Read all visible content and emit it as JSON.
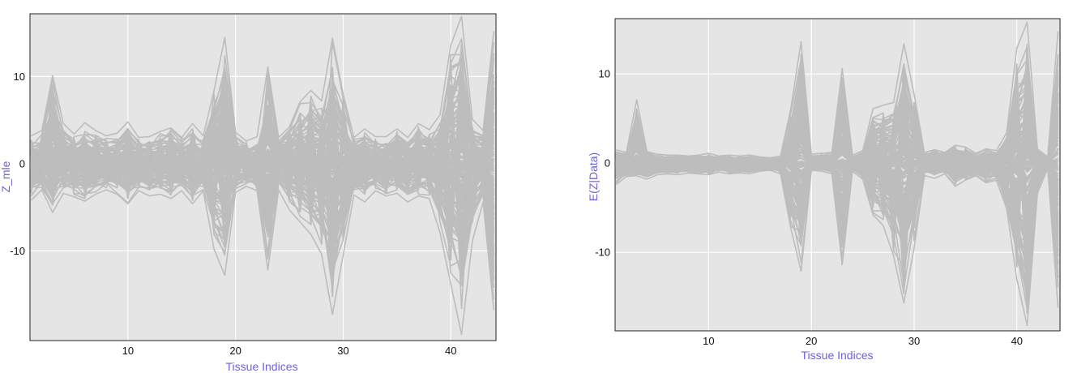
{
  "chart_data": [
    {
      "type": "line",
      "title": "",
      "xlabel": "Tissue Indices",
      "ylabel": "Z_mle",
      "xlim": [
        0.9,
        44.2
      ],
      "ylim": [
        -20.3,
        17.2
      ],
      "x_ticks": [
        10,
        20,
        30,
        40
      ],
      "y_ticks": [
        10,
        0,
        -10
      ],
      "grid": true,
      "legend": "none",
      "line_color": "#bdbdbd",
      "plot_background": "#e5e5e5",
      "grid_color": "#ffffff",
      "n_tissues": 44,
      "series_description_note": "",
      "envelope": {
        "x": [
          1,
          2,
          3,
          4,
          5,
          6,
          7,
          8,
          9,
          10,
          11,
          12,
          13,
          14,
          15,
          16,
          17,
          18,
          19,
          20,
          21,
          22,
          23,
          24,
          25,
          26,
          27,
          28,
          29,
          30,
          31,
          32,
          33,
          34,
          35,
          36,
          37,
          38,
          39,
          40,
          41,
          42,
          43,
          44
        ],
        "upper": [
          3.2,
          3.8,
          10.1,
          4.6,
          3.4,
          4.7,
          3.8,
          3.2,
          3.5,
          4.8,
          3.0,
          3.1,
          3.7,
          4.1,
          3.0,
          4.6,
          3.2,
          8.4,
          14.5,
          3.6,
          2.6,
          3.1,
          11.1,
          3.0,
          4.2,
          7.1,
          8.4,
          7.2,
          14.4,
          8.0,
          3.0,
          4.0,
          3.1,
          3.1,
          4.0,
          3.0,
          4.6,
          3.9,
          5.6,
          13.6,
          16.9,
          5.1,
          3.8,
          15.2
        ],
        "lower": [
          -4.2,
          -3.0,
          -5.6,
          -3.4,
          -3.8,
          -4.3,
          -3.5,
          -3.0,
          -3.5,
          -4.6,
          -3.1,
          -3.7,
          -3.5,
          -4.0,
          -3.1,
          -4.6,
          -3.1,
          -9.8,
          -12.8,
          -3.3,
          -2.6,
          -3.1,
          -12.2,
          -3.0,
          -5.3,
          -6.7,
          -8.1,
          -10.4,
          -17.3,
          -10.5,
          -3.6,
          -4.4,
          -3.1,
          -3.7,
          -3.4,
          -4.4,
          -3.7,
          -4.0,
          -7.9,
          -13.8,
          -19.6,
          -8.9,
          -4.4,
          -16.8
        ]
      }
    },
    {
      "type": "line",
      "title": "",
      "xlabel": "Tissue Indices",
      "ylabel": "E(Z|Data)",
      "xlim": [
        0.9,
        44.2
      ],
      "ylim": [
        -18.8,
        16.2
      ],
      "x_ticks": [
        10,
        20,
        30,
        40
      ],
      "y_ticks": [
        10,
        0,
        -10
      ],
      "grid": true,
      "legend": "none",
      "line_color": "#bdbdbd",
      "plot_background": "#e5e5e5",
      "grid_color": "#ffffff",
      "n_tissues": 44,
      "envelope": {
        "x": [
          1,
          2,
          3,
          4,
          5,
          6,
          7,
          8,
          9,
          10,
          11,
          12,
          13,
          14,
          15,
          16,
          17,
          18,
          19,
          20,
          21,
          22,
          23,
          24,
          25,
          26,
          27,
          28,
          29,
          30,
          31,
          32,
          33,
          34,
          35,
          36,
          37,
          38,
          39,
          40,
          41,
          42,
          43,
          44
        ],
        "upper": [
          1.5,
          1.2,
          7.1,
          1.3,
          1.0,
          0.9,
          0.9,
          0.8,
          0.9,
          1.1,
          0.8,
          0.9,
          0.8,
          0.9,
          0.7,
          0.6,
          0.8,
          6.1,
          13.6,
          1.0,
          1.1,
          1.2,
          10.6,
          0.9,
          1.4,
          6.1,
          6.5,
          6.8,
          13.4,
          7.7,
          1.2,
          1.5,
          1.2,
          2.0,
          1.8,
          1.1,
          1.6,
          1.4,
          3.4,
          12.9,
          15.8,
          1.6,
          0.7,
          14.8
        ],
        "lower": [
          -2.4,
          -1.5,
          -1.4,
          -1.8,
          -1.3,
          -1.2,
          -1.3,
          -1.1,
          -1.2,
          -1.3,
          -1.0,
          -1.2,
          -1.1,
          -1.2,
          -0.9,
          -0.8,
          -1.2,
          -7.3,
          -12.1,
          -0.8,
          -0.9,
          -1.2,
          -11.4,
          -0.9,
          -1.8,
          -5.8,
          -7.0,
          -10.4,
          -15.7,
          -9.5,
          -1.4,
          -1.7,
          -1.2,
          -2.6,
          -1.9,
          -1.4,
          -2.2,
          -1.9,
          -5.1,
          -13.0,
          -18.2,
          -3.4,
          -0.6,
          -16.2
        ]
      }
    }
  ]
}
